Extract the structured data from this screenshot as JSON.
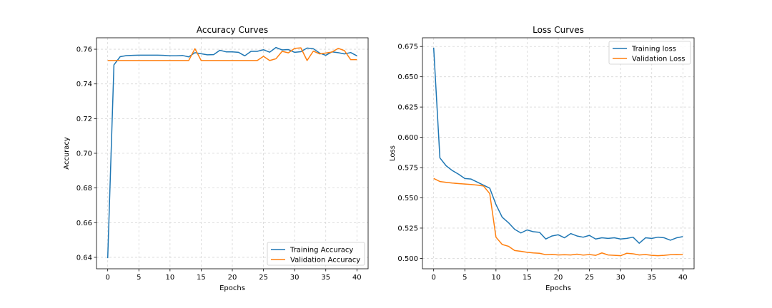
{
  "colors": {
    "training": "#1f77b4",
    "validation": "#ff7f0e"
  },
  "chart_data": [
    {
      "type": "line",
      "title": "Accuracy Curves",
      "xlabel": "Epochs",
      "ylabel": "Accuracy",
      "xlim": [
        -1.8,
        41.8
      ],
      "ylim": [
        0.6334,
        0.7666
      ],
      "xticks": [
        0,
        5,
        10,
        15,
        20,
        25,
        30,
        35,
        40
      ],
      "xtick_labels": [
        "0",
        "5",
        "10",
        "15",
        "20",
        "25",
        "30",
        "35",
        "40"
      ],
      "yticks": [
        0.64,
        0.66,
        0.68,
        0.7,
        0.72,
        0.74,
        0.76
      ],
      "ytick_labels": [
        "0.64",
        "0.66",
        "0.68",
        "0.70",
        "0.72",
        "0.74",
        "0.76"
      ],
      "grid": true,
      "legend": "lower-right",
      "x": [
        0,
        1,
        2,
        3,
        4,
        5,
        6,
        7,
        8,
        9,
        10,
        11,
        12,
        13,
        14,
        15,
        16,
        17,
        18,
        19,
        20,
        21,
        22,
        23,
        24,
        25,
        26,
        27,
        28,
        29,
        30,
        31,
        32,
        33,
        34,
        35,
        36,
        37,
        38,
        39,
        40
      ],
      "series": [
        {
          "name": "Training Accuracy",
          "color_key": "training",
          "values": [
            0.6395,
            0.751,
            0.7557,
            0.7563,
            0.7565,
            0.7566,
            0.7566,
            0.7566,
            0.7566,
            0.7565,
            0.7562,
            0.7562,
            0.7564,
            0.7556,
            0.758,
            0.7574,
            0.7568,
            0.7569,
            0.7594,
            0.7585,
            0.7585,
            0.7582,
            0.7562,
            0.7588,
            0.7588,
            0.7597,
            0.7583,
            0.761,
            0.7596,
            0.7598,
            0.7582,
            0.7586,
            0.7607,
            0.7603,
            0.7578,
            0.7565,
            0.7585,
            0.758,
            0.7573,
            0.7581,
            0.7562
          ]
        },
        {
          "name": "Validation Accuracy",
          "color_key": "validation",
          "values": [
            0.7535,
            0.7535,
            0.7535,
            0.7535,
            0.7535,
            0.7535,
            0.7535,
            0.7535,
            0.7535,
            0.7535,
            0.7535,
            0.7535,
            0.7535,
            0.7535,
            0.7603,
            0.7535,
            0.7535,
            0.7535,
            0.7535,
            0.7535,
            0.7535,
            0.7535,
            0.7535,
            0.7535,
            0.7535,
            0.7559,
            0.7535,
            0.7545,
            0.7588,
            0.7579,
            0.7605,
            0.7608,
            0.7535,
            0.7589,
            0.7573,
            0.7578,
            0.7584,
            0.7605,
            0.7592,
            0.754,
            0.754
          ]
        }
      ]
    },
    {
      "type": "line",
      "title": "Loss Curves",
      "xlabel": "Epochs",
      "ylabel": "Loss",
      "xlim": [
        -1.8,
        41.8
      ],
      "ylim": [
        0.4914,
        0.6822
      ],
      "xticks": [
        0,
        5,
        10,
        15,
        20,
        25,
        30,
        35,
        40
      ],
      "xtick_labels": [
        "0",
        "5",
        "10",
        "15",
        "20",
        "25",
        "30",
        "35",
        "40"
      ],
      "yticks": [
        0.5,
        0.525,
        0.55,
        0.575,
        0.6,
        0.625,
        0.65,
        0.675
      ],
      "ytick_labels": [
        "0.500",
        "0.525",
        "0.550",
        "0.575",
        "0.600",
        "0.625",
        "0.650",
        "0.675"
      ],
      "grid": true,
      "legend": "upper-right",
      "x": [
        0,
        1,
        2,
        3,
        4,
        5,
        6,
        7,
        8,
        9,
        10,
        11,
        12,
        13,
        14,
        15,
        16,
        17,
        18,
        19,
        20,
        21,
        22,
        23,
        24,
        25,
        26,
        27,
        28,
        29,
        30,
        31,
        32,
        33,
        34,
        35,
        36,
        37,
        38,
        39,
        40
      ],
      "series": [
        {
          "name": "Training loss",
          "color_key": "training",
          "values": [
            0.674,
            0.583,
            0.5765,
            0.5725,
            0.5695,
            0.566,
            0.5655,
            0.563,
            0.5605,
            0.558,
            0.5445,
            0.534,
            0.5295,
            0.524,
            0.521,
            0.5235,
            0.522,
            0.5215,
            0.516,
            0.5185,
            0.5195,
            0.517,
            0.5205,
            0.5185,
            0.5175,
            0.519,
            0.516,
            0.517,
            0.5165,
            0.517,
            0.516,
            0.5165,
            0.5175,
            0.5125,
            0.517,
            0.5165,
            0.5175,
            0.517,
            0.515,
            0.517,
            0.518
          ]
        },
        {
          "name": "Validation Loss",
          "color_key": "validation",
          "values": [
            0.566,
            0.5635,
            0.5628,
            0.5622,
            0.5618,
            0.5614,
            0.561,
            0.5605,
            0.5598,
            0.5535,
            0.5175,
            0.5115,
            0.51,
            0.5065,
            0.5058,
            0.505,
            0.5045,
            0.5042,
            0.503,
            0.5033,
            0.5028,
            0.503,
            0.5028,
            0.5035,
            0.5027,
            0.5032,
            0.5025,
            0.5045,
            0.5028,
            0.5025,
            0.5022,
            0.5042,
            0.5038,
            0.5028,
            0.5032,
            0.5025,
            0.5022,
            0.5025,
            0.503,
            0.5032,
            0.503
          ]
        }
      ]
    }
  ]
}
